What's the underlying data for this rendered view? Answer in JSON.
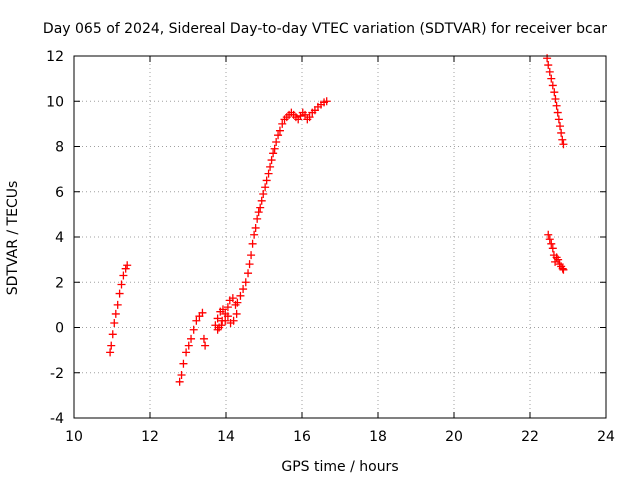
{
  "chart_data": {
    "type": "scatter",
    "title": "Day 065 of 2024, Sidereal Day-to-day VTEC variation (SDTVAR) for receiver bcar",
    "xlabel": "GPS time / hours",
    "ylabel": "SDTVAR / TECUs",
    "xlim": [
      10,
      24
    ],
    "ylim": [
      -4,
      12
    ],
    "x_ticks": [
      10,
      12,
      14,
      16,
      18,
      20,
      22,
      24
    ],
    "y_ticks": [
      -4,
      -2,
      0,
      2,
      4,
      6,
      8,
      10,
      12
    ],
    "grid": true,
    "marker": "plus",
    "color": "#ff0000",
    "series": [
      {
        "points": [
          [
            10.95,
            -1.1
          ],
          [
            10.98,
            -0.8
          ],
          [
            11.02,
            -0.3
          ],
          [
            11.06,
            0.2
          ],
          [
            11.1,
            0.6
          ],
          [
            11.15,
            1.0
          ],
          [
            11.2,
            1.5
          ],
          [
            11.25,
            1.9
          ],
          [
            11.3,
            2.3
          ],
          [
            11.36,
            2.6
          ],
          [
            11.4,
            2.75
          ]
        ]
      },
      {
        "points": [
          [
            12.78,
            -2.4
          ],
          [
            12.83,
            -2.1
          ],
          [
            12.88,
            -1.6
          ],
          [
            12.95,
            -1.1
          ],
          [
            13.02,
            -0.8
          ],
          [
            13.08,
            -0.5
          ],
          [
            13.15,
            -0.1
          ],
          [
            13.22,
            0.3
          ],
          [
            13.3,
            0.5
          ],
          [
            13.38,
            0.65
          ],
          [
            13.42,
            -0.5
          ],
          [
            13.45,
            -0.8
          ]
        ]
      },
      {
        "points": [
          [
            13.72,
            0.1
          ],
          [
            13.78,
            0.4
          ],
          [
            13.85,
            0.7
          ],
          [
            13.92,
            0.8
          ],
          [
            13.98,
            0.6
          ],
          [
            13.9,
            0.3
          ],
          [
            13.82,
            0.0
          ],
          [
            13.78,
            -0.1
          ],
          [
            13.88,
            0.1
          ],
          [
            13.98,
            0.3
          ],
          [
            14.05,
            0.5
          ],
          [
            14.05,
            0.9
          ],
          [
            14.1,
            1.2
          ],
          [
            14.18,
            1.3
          ],
          [
            14.25,
            1.0
          ],
          [
            14.28,
            0.6
          ],
          [
            14.2,
            0.3
          ],
          [
            14.12,
            0.2
          ],
          [
            14.3,
            1.1
          ],
          [
            14.38,
            1.4
          ],
          [
            14.45,
            1.7
          ],
          [
            14.52,
            2.0
          ],
          [
            14.58,
            2.4
          ],
          [
            14.62,
            2.8
          ],
          [
            14.66,
            3.2
          ],
          [
            14.7,
            3.7
          ],
          [
            14.74,
            4.1
          ],
          [
            14.78,
            4.4
          ],
          [
            14.82,
            4.8
          ],
          [
            14.86,
            5.1
          ],
          [
            14.9,
            5.3
          ],
          [
            14.94,
            5.6
          ],
          [
            14.98,
            5.9
          ],
          [
            15.03,
            6.2
          ],
          [
            15.07,
            6.5
          ],
          [
            15.12,
            6.8
          ],
          [
            15.16,
            7.1
          ],
          [
            15.2,
            7.4
          ],
          [
            15.24,
            7.7
          ],
          [
            15.28,
            7.9
          ],
          [
            15.32,
            8.2
          ],
          [
            15.37,
            8.5
          ],
          [
            15.42,
            8.7
          ],
          [
            15.48,
            9.0
          ],
          [
            15.54,
            9.2
          ],
          [
            15.6,
            9.3
          ],
          [
            15.66,
            9.4
          ],
          [
            15.72,
            9.5
          ],
          [
            15.78,
            9.4
          ],
          [
            15.84,
            9.3
          ],
          [
            15.9,
            9.2
          ],
          [
            15.96,
            9.35
          ],
          [
            16.02,
            9.5
          ],
          [
            16.08,
            9.4
          ],
          [
            16.14,
            9.2
          ],
          [
            16.2,
            9.3
          ],
          [
            16.27,
            9.5
          ],
          [
            16.34,
            9.6
          ],
          [
            16.42,
            9.75
          ],
          [
            16.5,
            9.85
          ],
          [
            16.58,
            9.95
          ],
          [
            16.65,
            10.0
          ]
        ]
      },
      {
        "points": [
          [
            22.45,
            11.9
          ],
          [
            22.48,
            11.6
          ],
          [
            22.52,
            11.3
          ],
          [
            22.56,
            11.0
          ],
          [
            22.6,
            10.7
          ],
          [
            22.64,
            10.4
          ],
          [
            22.67,
            10.1
          ],
          [
            22.7,
            9.8
          ],
          [
            22.73,
            9.5
          ],
          [
            22.76,
            9.2
          ],
          [
            22.79,
            8.9
          ],
          [
            22.82,
            8.6
          ],
          [
            22.85,
            8.3
          ],
          [
            22.88,
            8.1
          ]
        ]
      },
      {
        "points": [
          [
            22.48,
            4.1
          ],
          [
            22.52,
            3.9
          ],
          [
            22.56,
            3.7
          ],
          [
            22.6,
            3.5
          ],
          [
            22.63,
            3.2
          ],
          [
            22.66,
            2.9
          ],
          [
            22.7,
            3.1
          ],
          [
            22.74,
            3.0
          ],
          [
            22.78,
            2.8
          ],
          [
            22.82,
            2.7
          ],
          [
            22.86,
            2.6
          ],
          [
            22.88,
            2.55
          ]
        ]
      }
    ]
  }
}
